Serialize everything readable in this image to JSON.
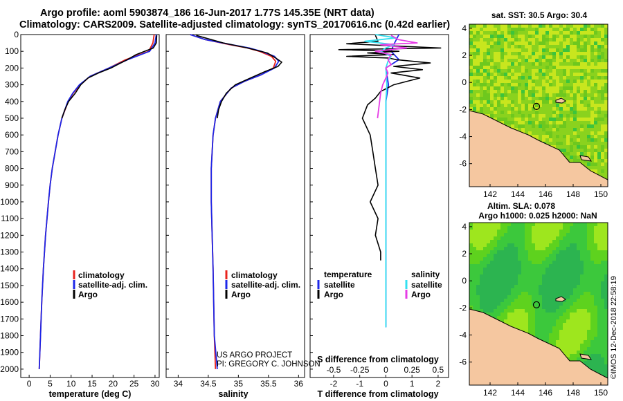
{
  "header": {
    "title_line1": "Argo profile: aoml 5903874_186 16-Jun-2017 1.77S 145.35E (NRT data)",
    "title_line2": "Climatology: CARS2009. Satellite-adjusted climatology: synTS_20170616.nc (0.42d earlier)"
  },
  "colors": {
    "climatology": "#e8231d",
    "satellite": "#1d27e8",
    "argo": "#000000",
    "sat_temp_diff": "#1d27e8",
    "argo_temp_diff": "#000000",
    "sat_sal_diff": "#33e0f0",
    "argo_sal_diff": "#e63ce6",
    "land": "#f5c7a0",
    "frame": "#000000"
  },
  "labels": {
    "project": "US ARGO PROJECT",
    "pi": "PI: GREGORY C. JOHNSON",
    "stamp": "©IMOS 12-Dec-2018 22:58:19"
  },
  "chart_data": [
    {
      "type": "line",
      "name": "temperature-profile",
      "xlabel": "temperature (deg C)",
      "xlim": [
        -2,
        31
      ],
      "ylim": [
        2050,
        0
      ],
      "xticks": [
        0,
        5,
        10,
        15,
        20,
        25,
        30
      ],
      "yticks": [
        0,
        100,
        200,
        300,
        400,
        500,
        600,
        700,
        800,
        900,
        1000,
        1100,
        1200,
        1300,
        1400,
        1500,
        1600,
        1700,
        1800,
        1900,
        2000
      ],
      "legend": [
        "climatology",
        "satellite-adj. clim.",
        "Argo"
      ],
      "series": [
        {
          "name": "climatology",
          "color": "#e8231d",
          "depth": [
            0,
            50,
            100,
            150,
            200,
            250,
            300,
            350,
            400,
            500,
            600,
            700,
            800,
            900,
            1000,
            1200,
            1400,
            1600,
            1800,
            2000
          ],
          "values": [
            29.8,
            29.5,
            28.5,
            23,
            19,
            14.5,
            12.2,
            10.5,
            9.3,
            7.8,
            6.9,
            6.2,
            5.5,
            5,
            4.6,
            3.9,
            3.4,
            3,
            2.7,
            2.4
          ]
        },
        {
          "name": "satellite-adj. clim.",
          "color": "#1d27e8",
          "depth": [
            0,
            50,
            100,
            150,
            200,
            250,
            300,
            350,
            400,
            500,
            600,
            700,
            800,
            900,
            1000,
            1200,
            1400,
            1600,
            1800,
            2000
          ],
          "values": [
            30.3,
            30,
            28.7,
            23.5,
            19,
            14.5,
            12,
            10.4,
            9.2,
            7.8,
            6.9,
            6.2,
            5.5,
            5,
            4.6,
            3.9,
            3.4,
            3,
            2.7,
            2.4
          ]
        },
        {
          "name": "Argo",
          "color": "#000000",
          "depth": [
            5,
            50,
            80,
            100,
            120,
            150,
            180,
            200,
            230,
            260,
            300,
            350,
            400,
            450,
            500
          ],
          "values": [
            30.4,
            30.3,
            29.6,
            27.5,
            25.5,
            23.4,
            21,
            19.5,
            16.5,
            14,
            12.3,
            11,
            9.4,
            8.5,
            7.8
          ]
        }
      ]
    },
    {
      "type": "line",
      "name": "salinity-profile",
      "xlabel": "salinity",
      "xlim": [
        33.8,
        36.1
      ],
      "ylim": [
        2050,
        0
      ],
      "xticks": [
        34,
        34.5,
        35,
        35.5,
        36
      ],
      "xtick_labels": [
        "34",
        "34.5",
        "35",
        "35.5",
        "36"
      ],
      "legend": [
        "climatology",
        "satellite-adj. clim.",
        "Argo"
      ],
      "series": [
        {
          "name": "climatology",
          "color": "#e8231d",
          "depth": [
            0,
            30,
            60,
            80,
            100,
            130,
            160,
            200,
            240,
            280,
            320,
            400,
            500,
            600,
            800,
            1000,
            1400,
            1800,
            2000
          ],
          "values": [
            34.2,
            34.45,
            34.85,
            35.15,
            35.35,
            35.55,
            35.62,
            35.58,
            35.38,
            35.1,
            34.88,
            34.7,
            34.62,
            34.58,
            34.55,
            34.55,
            34.58,
            34.6,
            34.62
          ]
        },
        {
          "name": "satellite-adj. clim.",
          "color": "#1d27e8",
          "depth": [
            0,
            30,
            60,
            80,
            100,
            130,
            160,
            200,
            240,
            280,
            320,
            400,
            500,
            600,
            800,
            1000,
            1400,
            1800,
            2000
          ],
          "values": [
            34.2,
            34.45,
            34.88,
            35.18,
            35.38,
            35.6,
            35.67,
            35.6,
            35.38,
            35.1,
            34.88,
            34.7,
            34.62,
            34.58,
            34.55,
            34.55,
            34.58,
            34.6,
            34.65
          ]
        },
        {
          "name": "Argo",
          "color": "#000000",
          "depth": [
            5,
            50,
            80,
            110,
            140,
            165,
            190,
            220,
            260,
            300,
            350,
            400,
            450,
            500
          ],
          "values": [
            34.3,
            34.75,
            35.15,
            35.48,
            35.62,
            35.72,
            35.66,
            35.45,
            35.2,
            34.95,
            34.8,
            34.72,
            34.67,
            34.65
          ]
        }
      ]
    },
    {
      "type": "line",
      "name": "difference-from-climatology",
      "xlabel": "T difference from climatology",
      "top_label": "S difference from climatology",
      "xlim": [
        -2.9,
        2.4
      ],
      "ylim": [
        2050,
        0
      ],
      "xticks": [
        -2,
        -1,
        0,
        1,
        2
      ],
      "xtick_labels": [
        "-2",
        "-1",
        "0",
        "1",
        "2"
      ],
      "s_xticks": [
        -0.5,
        -0.25,
        0,
        0.25,
        0.5
      ],
      "s_xtick_labels": [
        "-0.5",
        "-0.25",
        "0",
        "0.25",
        "0.5"
      ],
      "s_scale": 4,
      "legend_temperature_title": "temperature",
      "legend_salinity_title": "salinity",
      "legend_temperature": [
        "satellite",
        "Argo"
      ],
      "legend_salinity": [
        "satellite",
        "Argo"
      ],
      "series": [
        {
          "name": "T satellite",
          "color": "#1d27e8",
          "unit": "T",
          "depth": [
            0,
            60,
            100,
            150,
            200,
            300,
            400,
            500,
            1000,
            1500,
            1750
          ],
          "values": [
            0.5,
            0.3,
            0.2,
            0.5,
            0,
            0.1,
            0,
            0,
            0,
            0,
            0
          ]
        },
        {
          "name": "T Argo",
          "color": "#000000",
          "unit": "T",
          "depth": [
            5,
            40,
            55,
            70,
            80,
            90,
            100,
            110,
            120,
            130,
            140,
            150,
            170,
            190,
            210,
            230,
            260,
            300,
            340,
            380,
            420,
            460,
            500,
            600,
            700,
            800,
            900,
            1000,
            1100,
            1200,
            1300,
            1350
          ],
          "values": [
            -0.4,
            -0.3,
            -1.5,
            0.6,
            2.1,
            -1.8,
            0.5,
            -0.7,
            0.3,
            -1.5,
            0.1,
            0.4,
            1.7,
            0.3,
            1.4,
            0.2,
            1.3,
            0.3,
            -0.2,
            -0.4,
            -0.7,
            -0.8,
            -0.9,
            -0.6,
            -0.5,
            -0.4,
            -0.3,
            -0.6,
            -0.3,
            -0.4,
            -0.2,
            -0.2
          ]
        },
        {
          "name": "S satellite",
          "color": "#33e0f0",
          "unit": "S",
          "depth": [
            0,
            20,
            40,
            60,
            80,
            100,
            130,
            160,
            200,
            300,
            400,
            500,
            1000,
            1750
          ],
          "values": [
            -0.1,
            0.1,
            -0.2,
            0.08,
            0,
            -0.05,
            0.05,
            0.02,
            0,
            0.01,
            0,
            0,
            0,
            0
          ]
        },
        {
          "name": "S Argo",
          "color": "#e63ce6",
          "unit": "S",
          "depth": [
            5,
            30,
            50,
            60,
            80,
            100,
            120,
            150,
            180,
            200,
            230,
            260,
            300,
            350,
            400,
            450,
            500
          ],
          "values": [
            0.05,
            0.12,
            0.3,
            -0.05,
            0.2,
            -0.1,
            0.05,
            0.02,
            0.05,
            0,
            0.02,
            0,
            -0.03,
            -0.05,
            -0.06,
            -0.07,
            -0.08
          ]
        }
      ]
    },
    {
      "type": "heatmap",
      "name": "sst-map",
      "title": "sat. SST: 30.5 Argo: 30.4",
      "xlim": [
        140.5,
        150.5
      ],
      "ylim": [
        -7.7,
        4.3
      ],
      "xticks": [
        142,
        144,
        146,
        148,
        150
      ],
      "yticks": [
        4,
        2,
        0,
        -2,
        -4,
        -6
      ],
      "float_position": {
        "lon": 145.35,
        "lat": -1.77
      }
    },
    {
      "type": "heatmap",
      "name": "sla-map",
      "title_line1": "Altim. SLA: 0.078",
      "title_line2": "Argo h1000: 0.025 h2000: NaN",
      "xlim": [
        140.5,
        150.5
      ],
      "ylim": [
        -7.7,
        4.3
      ],
      "xticks": [
        142,
        144,
        146,
        148,
        150
      ],
      "yticks": [
        4,
        2,
        0,
        -2,
        -4,
        -6
      ],
      "float_position": {
        "lon": 145.35,
        "lat": -1.77
      }
    }
  ]
}
